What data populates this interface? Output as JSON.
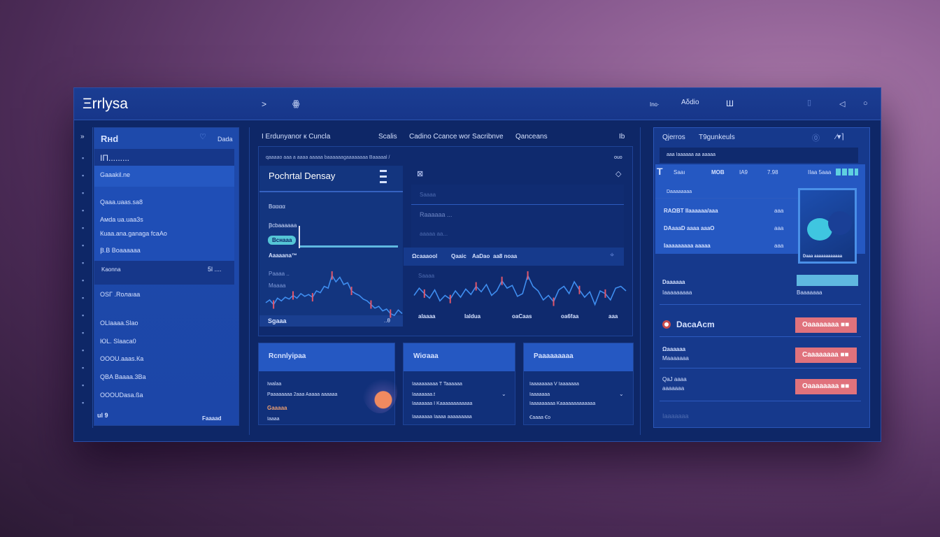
{
  "header": {
    "title": "Ξrrlysa",
    "nav_arrow": ">",
    "nav_icon": "ꙮ",
    "items": [
      "Ino·",
      "Aδdio",
      "Ш"
    ],
    "icons": [
      "document-icon",
      "back-icon",
      "circle-icon"
    ]
  },
  "sidebar": {
    "title": "Rнd",
    "action": "Dada",
    "items": [
      "ΙΠ.........",
      "Gaaakil.ne",
      "Qaaa.uaas.sa8",
      "Aмda ua.uaa3s",
      "Кuaa.ana.ganaga  fcaAo",
      "Ꞵ.B Boaaaaaa"
    ],
    "footer_row": {
      "label": "Kaonna",
      "value": "5l ...."
    },
    "lower_items": [
      "OSΓ .Roлaıaa",
      "OLlaaaa.Slao",
      "ЮL. Slaaca0",
      "OOOU.aaas.Кa",
      "QBA Baaaa.3Ba",
      "OOOUDasa.ßa"
    ],
    "bottom_left": "ul 9",
    "bottom_right": "Faaaad"
  },
  "center": {
    "tabs": [
      "Ι Εrdunyanor к Cuncla",
      "Scalis",
      "Cadino Ccance wor Sacribnve",
      "Qanceans",
      "Ib"
    ],
    "strip_text": "qaaaao aaa a aaaa aaaaa  baaaaaagaaaaaaaa Baaaaal /",
    "strip_right": "ouo",
    "left": {
      "title": "Pochrtal Densay",
      "rows": [
        "Βαααα",
        "Ꞵcbaaaaaa",
        "Βcнaaa",
        "Aaaaana™"
      ],
      "chart_label_1": "Paaaa ..",
      "chart_label_2": "Maaaa",
      "footer_left": "Sgaaa",
      "footer_right": "..θ"
    },
    "right": {
      "rows": [
        "Saaaa",
        "Raaaaaa ...",
        "aaaaa aa..."
      ],
      "bar_items": [
        "Ωcaaaool",
        "Qaaic",
        "AaDao",
        "aa8 noaa"
      ],
      "chart_label": "Saaaa",
      "x_ticks": [
        "alaaaa",
        "Ialdua",
        "oaCaas",
        "oa6faa",
        "aaa"
      ]
    }
  },
  "chart": {
    "left_values": [
      42,
      45,
      40,
      47,
      44,
      48,
      46,
      50,
      47,
      52,
      49,
      51,
      48,
      55,
      53,
      60,
      58,
      72,
      65,
      70,
      62,
      64,
      55,
      52,
      50,
      46,
      44,
      40,
      36,
      38,
      33,
      35,
      30,
      28,
      34,
      30
    ],
    "right_values": [
      50,
      58,
      52,
      47,
      56,
      44,
      50,
      46,
      55,
      48,
      57,
      51,
      60,
      54,
      62,
      50,
      55,
      66,
      58,
      61,
      49,
      52,
      72,
      60,
      55,
      45,
      50,
      43,
      56,
      60,
      52,
      65,
      56,
      48,
      54,
      40,
      55,
      52,
      45,
      58,
      60,
      55
    ],
    "line_color": "#3f8ef0",
    "candle_color": "#e0566a"
  },
  "cards": [
    {
      "title": "Rcnnlyipaa",
      "rows": [
        "Ιwalaa",
        "Ρaaaaaaaa 2aaa Aaaaa aaaaaa",
        "Gaaaaa",
        "Ιaaaa"
      ]
    },
    {
      "title": "Wiσaaa",
      "rows": [
        "Iaaaaaaaaa   Τ Taaaaaa",
        "Iaaaaaaa.t",
        "Iaaaaaaa I  Kaaaaaaaaaaaa",
        "Iaaaaaaa   Iaaaa aaaaaaaaa"
      ]
    },
    {
      "title": "Ρaaaaaaaaa",
      "rows": [
        "Iaaaaaaaa   V Iaaaaaaa",
        "Iaaaaaaa",
        "Iaaaaaaaaa Kaaaaaaaaaaaaa",
        "Ꞓaaaa Ꞓo"
      ]
    }
  ],
  "right_panel": {
    "tabs": [
      "Qjerros",
      "Τ9gunkeuls"
    ],
    "tab_icons": [
      "badge-icon",
      "pin-icon"
    ],
    "strip_text": "aaa  Iaaaaaa aa aaaaa",
    "columns": [
      "Saaı",
      "MOB",
      "IA9",
      "7.98",
      "IIaa 5aaa"
    ],
    "sub_label": "Daaaaaaaa",
    "rows": [
      {
        "label": "RAΩBT IIaaaaaa/aaa",
        "value": "aaa"
      },
      {
        "label": "DAaaaD aaaa   aaaO",
        "value": "aaa"
      },
      {
        "label": "Iaaaaaaaaa  aaaaa",
        "value": "aaa"
      }
    ],
    "thumb_caption": "Daaa aaaaaaaaaaaa",
    "info": {
      "l1": "Daaaaaa",
      "l2": "Iaaaaaaaaa",
      "r": "Baaaaaaa"
    },
    "alerts": [
      {
        "title": "DacaAcm",
        "button": "Oaaaaaaaa ■■"
      },
      {
        "title": "Ωaaaaaa",
        "sub": "Maaaaaaa",
        "button": "Caaaaaaaa ■■"
      },
      {
        "title": "QaJ aaaa",
        "sub": "aaaaaaa",
        "button": "Oaaaaaaaa ■■"
      }
    ],
    "footer": "Iaaaaaaa"
  },
  "colors": {
    "accent": "#2558c2",
    "window": "#0e2767",
    "alert": "#e0727c",
    "teal": "#5fd0e0"
  }
}
